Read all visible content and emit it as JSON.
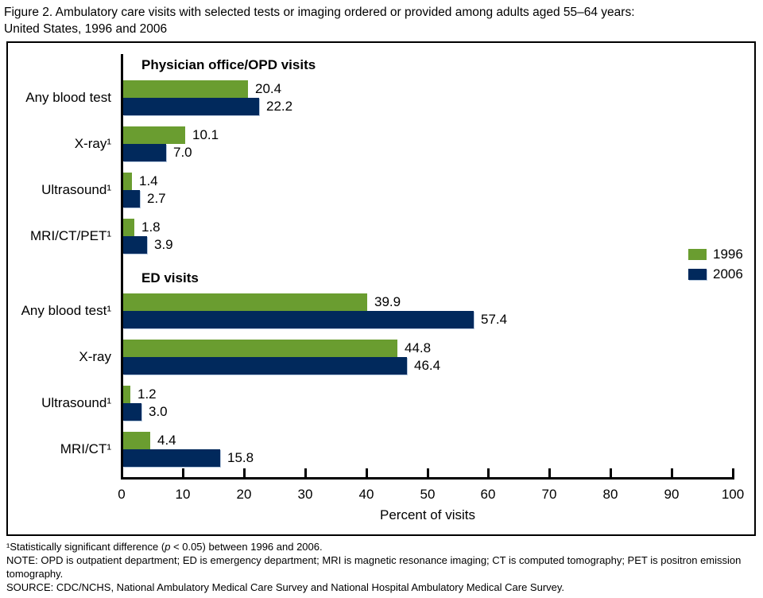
{
  "figure": {
    "title_line1": "Figure 2.  Ambulatory care visits with selected tests or imaging ordered or provided among adults aged 55–64 years:",
    "title_line2": "United States, 1996 and 2006"
  },
  "chart_data": {
    "type": "bar",
    "orientation": "horizontal",
    "xlabel": "Percent of visits",
    "xlim": [
      0,
      100
    ],
    "xticks": [
      0,
      10,
      20,
      30,
      40,
      50,
      60,
      70,
      80,
      90,
      100
    ],
    "grid": false,
    "legend_position": "right",
    "legend": [
      {
        "name": "1996",
        "color": "#6A9D30"
      },
      {
        "name": "2006",
        "color": "#01295C"
      }
    ],
    "groups": [
      {
        "header": "Physician office/OPD visits",
        "rows": [
          {
            "category": "Any blood test",
            "values": [
              20.4,
              22.2
            ],
            "labels": [
              "20.4",
              "22.2"
            ]
          },
          {
            "category": "X-ray¹",
            "values": [
              10.1,
              7.0
            ],
            "labels": [
              "10.1",
              "7.0"
            ]
          },
          {
            "category": "Ultrasound¹",
            "values": [
              1.4,
              2.7
            ],
            "labels": [
              "1.4",
              "2.7"
            ]
          },
          {
            "category": "MRI/CT/PET¹",
            "values": [
              1.8,
              3.9
            ],
            "labels": [
              "1.8",
              "3.9"
            ]
          }
        ]
      },
      {
        "header": "ED visits",
        "rows": [
          {
            "category": "Any blood test¹",
            "values": [
              39.9,
              57.4
            ],
            "labels": [
              "39.9",
              "57.4"
            ]
          },
          {
            "category": "X-ray",
            "values": [
              44.8,
              46.4
            ],
            "labels": [
              "44.8",
              "46.4"
            ]
          },
          {
            "category": "Ultrasound¹",
            "values": [
              1.2,
              3.0
            ],
            "labels": [
              "1.2",
              "3.0"
            ]
          },
          {
            "category": "MRI/CT¹",
            "values": [
              4.4,
              15.8
            ],
            "labels": [
              "4.4",
              "15.8"
            ]
          }
        ]
      }
    ]
  },
  "footnotes": {
    "sig_prefix": "¹Statistically significant difference (",
    "sig_italic": "p",
    "sig_suffix": " < 0.05) between 1996 and 2006.",
    "note": "NOTE: OPD is outpatient department; ED is emergency department; MRI is magnetic resonance imaging; CT is computed tomography; PET is positron emission tomography.",
    "source": "SOURCE: CDC/NCHS, National Ambulatory Medical Care Survey and National Hospital Ambulatory Medical Care Survey."
  }
}
